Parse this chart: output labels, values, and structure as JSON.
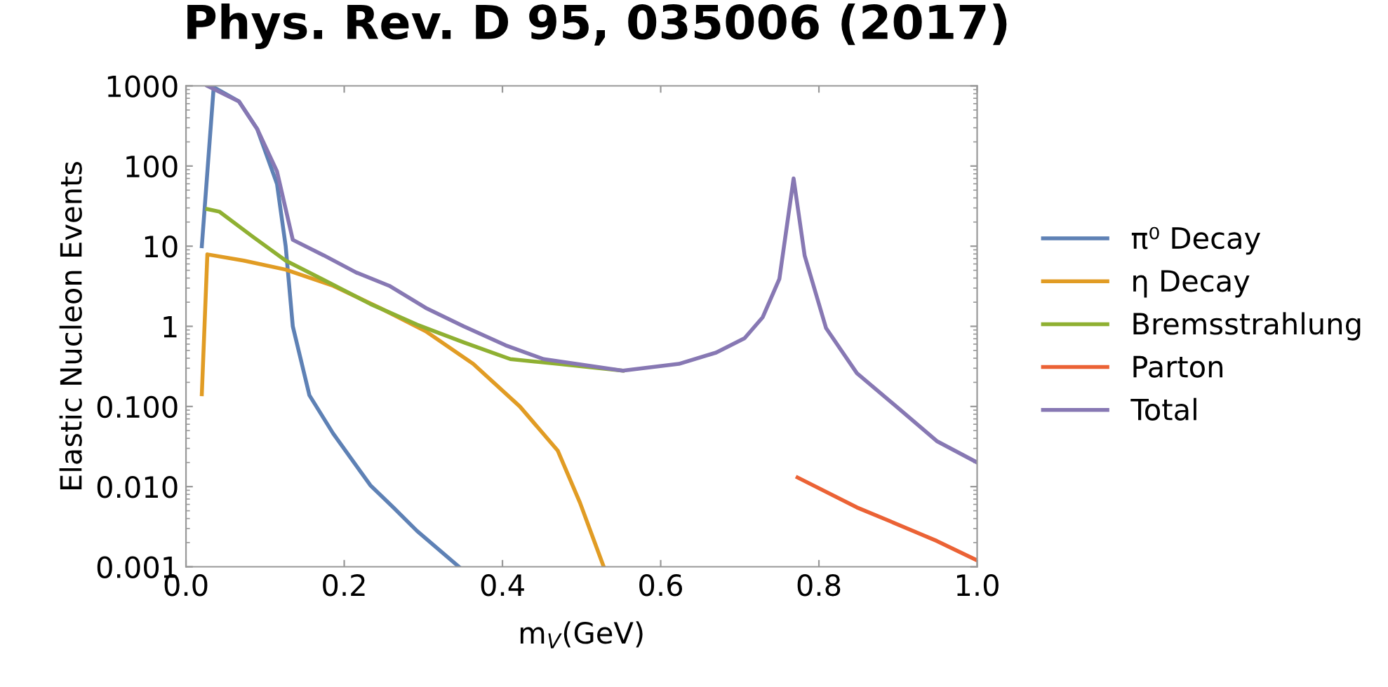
{
  "chart_data": {
    "type": "line",
    "title": "Phys. Rev. D 95, 035006 (2017)",
    "xlabel": "m$_{V}$(GeV)",
    "ylabel": "Elastic Nucleon Events",
    "log": "y",
    "xlim": [
      0.0,
      1.0
    ],
    "ylim": [
      0.001,
      1000
    ],
    "xticks": [
      {
        "value": 0.0,
        "label": "0.0"
      },
      {
        "value": 0.2,
        "label": "0.2"
      },
      {
        "value": 0.4,
        "label": "0.4"
      },
      {
        "value": 0.6,
        "label": "0.6"
      },
      {
        "value": 0.8,
        "label": "0.8"
      },
      {
        "value": 1.0,
        "label": "1.0"
      }
    ],
    "yticks": [
      {
        "value": 0.001,
        "label": "0.001"
      },
      {
        "value": 0.01,
        "label": "0.010"
      },
      {
        "value": 0.1,
        "label": "0.100"
      },
      {
        "value": 1,
        "label": "1"
      },
      {
        "value": 10,
        "label": "10"
      },
      {
        "value": 100,
        "label": "100"
      },
      {
        "value": 1000,
        "label": "1000"
      }
    ],
    "grid": false,
    "legend": "right",
    "line_style": "solid",
    "marker": "none",
    "series": [
      {
        "name": "π⁰ Decay",
        "color": "#5e81b5",
        "x": [
          0.02,
          0.035,
          0.067,
          0.09,
          0.115,
          0.126,
          0.135,
          0.156,
          0.186,
          0.233,
          0.262,
          0.292,
          0.345
        ],
        "values": [
          10,
          960,
          640,
          290,
          60,
          10,
          1,
          0.138,
          0.046,
          0.0104,
          0.0055,
          0.0028,
          0.001
        ]
      },
      {
        "name": "η Decay",
        "color": "#e19c24",
        "x": [
          0.02,
          0.027,
          0.073,
          0.126,
          0.186,
          0.245,
          0.303,
          0.363,
          0.422,
          0.47,
          0.498,
          0.528
        ],
        "values": [
          0.142,
          7.9,
          6.6,
          5.1,
          3.2,
          1.7,
          0.87,
          0.34,
          0.1,
          0.028,
          0.0063,
          0.001
        ]
      },
      {
        "name": "Bremsstrahlung",
        "color": "#8fb032",
        "x": [
          0.027,
          0.042,
          0.085,
          0.126,
          0.174,
          0.233,
          0.292,
          0.351,
          0.41,
          0.47,
          0.552
        ],
        "values": [
          29,
          27,
          13,
          6.6,
          3.8,
          1.9,
          1.05,
          0.63,
          0.39,
          0.34,
          0.28
        ]
      },
      {
        "name": "Parton",
        "color": "#eb6235",
        "x": [
          0.773,
          0.848,
          0.89,
          0.949,
          1.0
        ],
        "values": [
          0.013,
          0.0055,
          0.0037,
          0.0021,
          0.0012
        ]
      },
      {
        "name": "Total",
        "color": "#8778b3",
        "x": [
          0.027,
          0.067,
          0.09,
          0.115,
          0.135,
          0.174,
          0.215,
          0.257,
          0.303,
          0.351,
          0.404,
          0.452,
          0.552,
          0.623,
          0.67,
          0.706,
          0.729,
          0.75,
          0.768,
          0.782,
          0.809,
          0.848,
          0.901,
          0.949,
          1.0
        ],
        "values": [
          1000,
          640,
          290,
          86,
          12,
          7.7,
          4.7,
          3.2,
          1.7,
          1.0,
          0.58,
          0.39,
          0.28,
          0.34,
          0.47,
          0.71,
          1.3,
          3.9,
          70,
          7.6,
          0.95,
          0.26,
          0.094,
          0.037,
          0.02
        ]
      }
    ]
  }
}
